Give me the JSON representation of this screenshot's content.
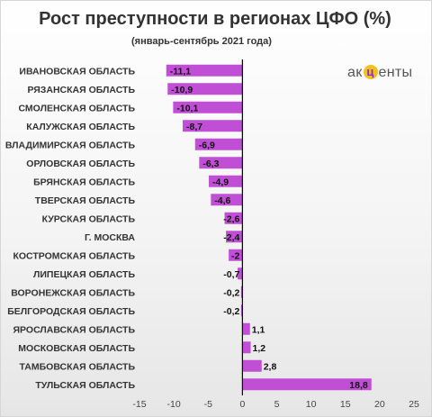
{
  "title": "Рост преступности в регионах ЦФО (%)",
  "subtitle": "(январь-сентябрь  2021 года)",
  "logo": {
    "prefix": "ак",
    "mark": "ц",
    "suffix": "енты"
  },
  "chart_data": {
    "type": "bar",
    "orientation": "horizontal",
    "title": "Рост преступности в регионах ЦФО (%)",
    "subtitle": "(январь-сентябрь  2021 года)",
    "categories": [
      "ИВАНОВСКАЯ ОБЛАСТЬ",
      "РЯЗАНСКАЯ ОБЛАСТЬ",
      "СМОЛЕНСКАЯ ОБЛАСТЬ",
      "КАЛУЖСКАЯ ОБЛАСТЬ",
      "ВЛАДИМИРСКАЯ ОБЛАСТЬ",
      "ОРЛОВСКАЯ ОБЛАСТЬ",
      "БРЯНСКАЯ ОБЛАСТЬ",
      "ТВЕРСКАЯ ОБЛАСТЬ",
      "КУРСКАЯ ОБЛАСТЬ",
      "Г. МОСКВА",
      "КОСТРОМСКАЯ ОБЛАСТЬ",
      "ЛИПЕЦКАЯ ОБЛАСТЬ",
      "ВОРОНЕЖСКАЯ ОБЛАСТЬ",
      "БЕЛГОРОДСКАЯ ОБЛАСТЬ",
      "ЯРОСЛАВСКАЯ ОБЛАСТЬ",
      "МОСКОВСКАЯ ОБЛАСТЬ",
      "ТАМБОВСКАЯ ОБЛАСТЬ",
      "ТУЛЬСКАЯ ОБЛАСТЬ"
    ],
    "values": [
      -11.1,
      -10.9,
      -10.1,
      -8.7,
      -6.9,
      -6.3,
      -4.9,
      -4.6,
      -2.6,
      -2.4,
      -2,
      -0.7,
      -0.2,
      -0.2,
      1.1,
      1.2,
      2.8,
      18.8
    ],
    "value_labels": [
      "-11,1",
      "-10,9",
      "-10,1",
      "-8,7",
      "-6,9",
      "-6,3",
      "-4,9",
      "-4,6",
      "-2,6",
      "-2,4",
      "-2",
      "-0,7",
      "-0,2",
      "-0,2",
      "1,1",
      "1,2",
      "2,8",
      "18,8"
    ],
    "xlim": [
      -15,
      25
    ],
    "xticks": [
      -15,
      -10,
      -5,
      0,
      5,
      10,
      15,
      20,
      25
    ],
    "grid": false,
    "legend": "none",
    "bar_color": "#c04fd6",
    "zero_line_color": "#000000"
  }
}
